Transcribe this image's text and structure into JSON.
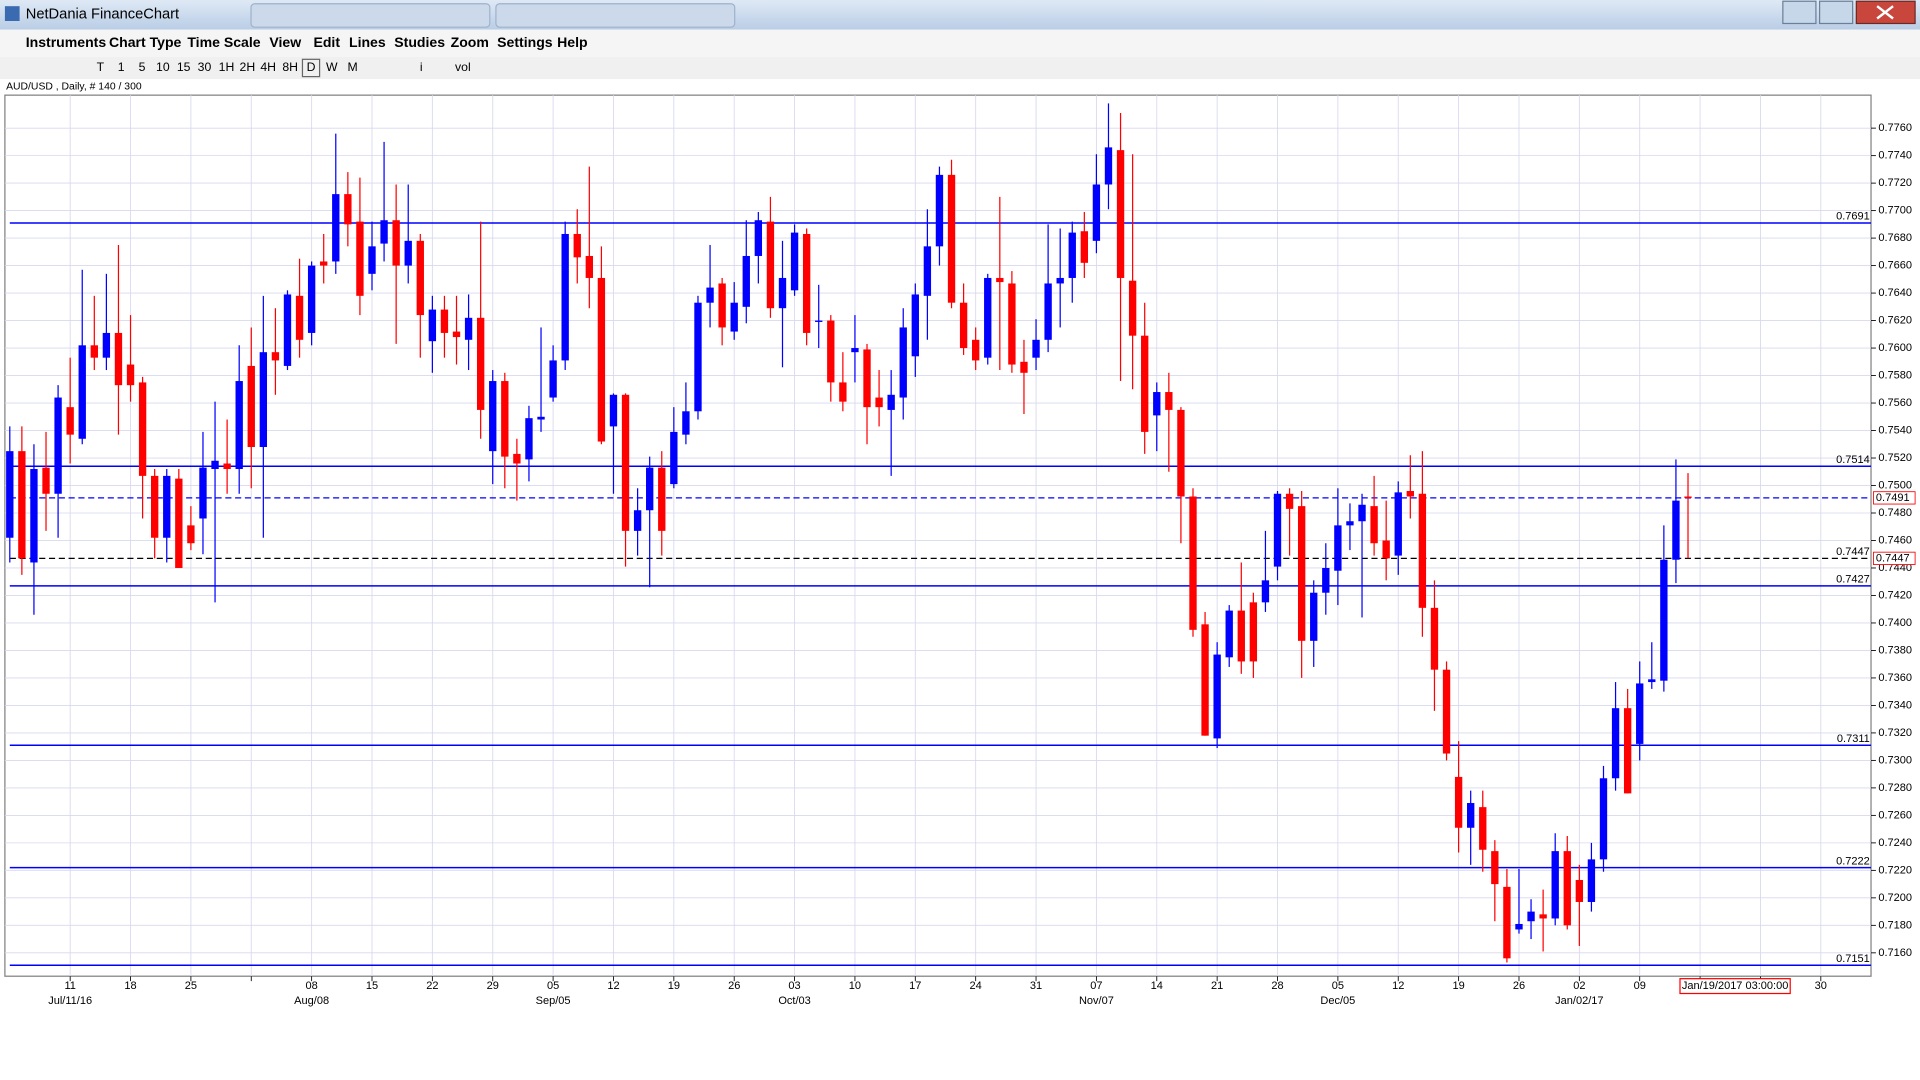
{
  "window": {
    "title": "NetDania FinanceChart",
    "menu": [
      "Instruments",
      "Chart Type",
      "Time Scale",
      "View",
      "Edit",
      "Lines",
      "Studies",
      "Zoom",
      "Settings",
      "Help"
    ],
    "toolbar": [
      "T",
      "1",
      "5",
      "10",
      "15",
      "30",
      "1H",
      "2H",
      "4H",
      "8H",
      "D",
      "W",
      "M",
      "i",
      "vol"
    ]
  },
  "chart_data": {
    "type": "candlestick",
    "symbol_info": "AUD/USD , Daily, # 140 / 300",
    "up_color": "#0000ff",
    "down_color": "#ff0000",
    "grid": true,
    "open": [
      0.7462,
      0.7525,
      0.7444,
      0.7513,
      0.7494,
      0.7557,
      0.7534,
      0.7602,
      0.7593,
      0.7611,
      0.7588,
      0.7575,
      0.7507,
      0.7462,
      0.7505,
      0.7471,
      0.7476,
      0.7512,
      0.7516,
      0.7512,
      0.7587,
      0.7528,
      0.7597,
      0.7587,
      0.7638,
      0.7611,
      0.7663,
      0.7663,
      0.7712,
      0.7692,
      0.7654,
      0.7676,
      0.7693,
      0.766,
      0.7678,
      0.7605,
      0.7628,
      0.7612,
      0.7606,
      0.7622,
      0.7525,
      0.7576,
      0.7523,
      0.7519,
      0.7548,
      0.7564,
      0.7591,
      0.7683,
      0.7667,
      0.7651,
      0.7543,
      0.7566,
      0.7467,
      0.7482,
      0.7513,
      0.7501,
      0.7537,
      0.7554,
      0.7633,
      0.7647,
      0.7612,
      0.763,
      0.7667,
      0.7692,
      0.7629,
      0.7642,
      0.7683,
      0.7619,
      0.762,
      0.7575,
      0.7597,
      0.7599,
      0.7564,
      0.7555,
      0.7564,
      0.7594,
      0.7638,
      0.7674,
      0.7726,
      0.7633,
      0.7606,
      0.7593,
      0.7651,
      0.7647,
      0.759,
      0.7593,
      0.7606,
      0.7647,
      0.7651,
      0.7685,
      0.7678,
      0.7719,
      0.7744,
      0.7649,
      0.7609,
      0.7551,
      0.7568,
      0.7555,
      0.7492,
      0.7399,
      0.7316,
      0.7375,
      0.7409,
      0.7415,
      0.7415,
      0.7441,
      0.7494,
      0.7485,
      0.7387,
      0.7422,
      0.7438,
      0.7471,
      0.7474,
      0.7485,
      0.746,
      0.7449,
      0.7496,
      0.7494,
      0.7411,
      0.7366,
      0.7288,
      0.7251,
      0.7266,
      0.7234,
      0.7208,
      0.7177,
      0.7183,
      0.7188,
      0.7185,
      0.7234,
      0.7213,
      0.7197,
      0.7228,
      0.7287,
      0.7338,
      0.7312,
      0.7357,
      0.7358,
      0.7446,
      0.7492
    ],
    "high": [
      0.7543,
      0.7543,
      0.753,
      0.7539,
      0.7573,
      0.7593,
      0.7657,
      0.7638,
      0.7654,
      0.7675,
      0.7624,
      0.7579,
      0.7512,
      0.7512,
      0.7512,
      0.7485,
      0.7539,
      0.7561,
      0.7548,
      0.7602,
      0.7615,
      0.7638,
      0.7629,
      0.7642,
      0.7665,
      0.7663,
      0.7683,
      0.7756,
      0.7728,
      0.7724,
      0.7692,
      0.775,
      0.7719,
      0.7719,
      0.7683,
      0.7638,
      0.7638,
      0.7638,
      0.7639,
      0.7692,
      0.7584,
      0.7582,
      0.7534,
      0.7558,
      0.7615,
      0.7602,
      0.7692,
      0.7701,
      0.7732,
      0.7674,
      0.7567,
      0.7567,
      0.7498,
      0.7521,
      0.7525,
      0.7557,
      0.7575,
      0.7638,
      0.7675,
      0.7651,
      0.7648,
      0.7693,
      0.7699,
      0.771,
      0.7678,
      0.769,
      0.7687,
      0.7646,
      0.7624,
      0.7597,
      0.7624,
      0.7603,
      0.7584,
      0.7584,
      0.7629,
      0.7647,
      0.7701,
      0.7732,
      0.7737,
      0.7647,
      0.7615,
      0.7654,
      0.771,
      0.7656,
      0.7606,
      0.7621,
      0.769,
      0.7687,
      0.7692,
      0.7699,
      0.7741,
      0.7778,
      0.7771,
      0.7741,
      0.7633,
      0.7575,
      0.7582,
      0.7557,
      0.7498,
      0.7408,
      0.7386,
      0.7413,
      0.7444,
      0.7422,
      0.7467,
      0.7496,
      0.7498,
      0.7496,
      0.7431,
      0.7458,
      0.7498,
      0.7487,
      0.7494,
      0.7507,
      0.7489,
      0.7503,
      0.7522,
      0.7525,
      0.7431,
      0.7372,
      0.7314,
      0.7278,
      0.7278,
      0.7242,
      0.7221,
      0.7221,
      0.7199,
      0.7206,
      0.7247,
      0.7245,
      0.7224,
      0.724,
      0.7296,
      0.7357,
      0.7352,
      0.7372,
      0.7386,
      0.7471,
      0.7519,
      0.7509
    ],
    "low": [
      0.7444,
      0.7435,
      0.7406,
      0.7467,
      0.7462,
      0.7516,
      0.753,
      0.7584,
      0.7584,
      0.7537,
      0.7561,
      0.7476,
      0.7447,
      0.7444,
      0.744,
      0.7453,
      0.745,
      0.7415,
      0.7494,
      0.7494,
      0.7498,
      0.7462,
      0.7566,
      0.7584,
      0.7593,
      0.7602,
      0.7647,
      0.7654,
      0.7674,
      0.7624,
      0.7642,
      0.7663,
      0.7603,
      0.7647,
      0.7593,
      0.7582,
      0.7593,
      0.7588,
      0.7584,
      0.7534,
      0.7501,
      0.7498,
      0.7489,
      0.7503,
      0.7539,
      0.7561,
      0.7584,
      0.7647,
      0.7629,
      0.753,
      0.7494,
      0.7441,
      0.7449,
      0.7426,
      0.7449,
      0.7498,
      0.753,
      0.7548,
      0.7615,
      0.7602,
      0.7606,
      0.7618,
      0.7647,
      0.7622,
      0.7586,
      0.7638,
      0.7602,
      0.76,
      0.7561,
      0.7554,
      0.7575,
      0.753,
      0.7543,
      0.7507,
      0.7548,
      0.7579,
      0.7606,
      0.766,
      0.7629,
      0.7595,
      0.7584,
      0.7588,
      0.7584,
      0.7582,
      0.7552,
      0.7584,
      0.7597,
      0.7615,
      0.7633,
      0.7651,
      0.7669,
      0.7701,
      0.7576,
      0.757,
      0.7523,
      0.7525,
      0.751,
      0.7458,
      0.739,
      0.7318,
      0.7309,
      0.7368,
      0.7363,
      0.736,
      0.7408,
      0.7431,
      0.7449,
      0.736,
      0.7368,
      0.7406,
      0.7413,
      0.7453,
      0.7404,
      0.7449,
      0.7431,
      0.7435,
      0.7476,
      0.739,
      0.7336,
      0.73,
      0.7233,
      0.7224,
      0.7219,
      0.7183,
      0.7153,
      0.7174,
      0.717,
      0.7161,
      0.718,
      0.7177,
      0.7165,
      0.719,
      0.7219,
      0.7278,
      0.7276,
      0.73,
      0.7352,
      0.735,
      0.7429,
      0.7447
    ],
    "close": [
      0.7525,
      0.7447,
      0.7512,
      0.7494,
      0.7564,
      0.7537,
      0.7602,
      0.7593,
      0.7611,
      0.7573,
      0.7573,
      0.7507,
      0.7462,
      0.7507,
      0.744,
      0.7458,
      0.7513,
      0.7518,
      0.7512,
      0.7576,
      0.7528,
      0.7597,
      0.7591,
      0.7639,
      0.7606,
      0.766,
      0.766,
      0.7712,
      0.769,
      0.7638,
      0.7674,
      0.7693,
      0.766,
      0.7678,
      0.7624,
      0.7628,
      0.7611,
      0.7608,
      0.7622,
      0.7555,
      0.7576,
      0.7521,
      0.7516,
      0.7549,
      0.755,
      0.7591,
      0.7683,
      0.7666,
      0.7651,
      0.7532,
      0.7566,
      0.7467,
      0.7482,
      0.7513,
      0.7467,
      0.7539,
      0.7554,
      0.7633,
      0.7644,
      0.7615,
      0.7633,
      0.7667,
      0.7693,
      0.7629,
      0.7651,
      0.7684,
      0.7611,
      0.762,
      0.7575,
      0.7561,
      0.76,
      0.7557,
      0.7557,
      0.7566,
      0.7615,
      0.7639,
      0.7674,
      0.7726,
      0.7633,
      0.76,
      0.7591,
      0.7651,
      0.7648,
      0.7588,
      0.7582,
      0.7606,
      0.7647,
      0.7651,
      0.7684,
      0.7662,
      0.7719,
      0.7746,
      0.7651,
      0.7609,
      0.7539,
      0.7568,
      0.7555,
      0.7492,
      0.7395,
      0.7318,
      0.7377,
      0.7409,
      0.7372,
      0.7372,
      0.7431,
      0.7494,
      0.7483,
      0.7387,
      0.7422,
      0.744,
      0.7471,
      0.7474,
      0.7486,
      0.7458,
      0.7447,
      0.7495,
      0.7492,
      0.7411,
      0.7366,
      0.7305,
      0.7251,
      0.7269,
      0.7235,
      0.721,
      0.7156,
      0.7181,
      0.719,
      0.7185,
      0.7234,
      0.718,
      0.7197,
      0.7228,
      0.7287,
      0.7338,
      0.7276,
      0.7356,
      0.7359,
      0.7446,
      0.7489,
      0.7491
    ],
    "xticks": [
      "11",
      "18",
      "25",
      null,
      "08",
      "15",
      "22",
      "29",
      "05",
      "12",
      "19",
      "26",
      "03",
      "10",
      "17",
      "24",
      "31",
      "07",
      "14",
      "21",
      "28",
      "05",
      "12",
      "19",
      "26",
      "02",
      "09",
      null,
      null,
      "30"
    ],
    "xticks_major": [
      "Jul/11/16",
      null,
      null,
      null,
      "Aug/08",
      null,
      null,
      null,
      "Sep/05",
      null,
      null,
      null,
      "Oct/03",
      null,
      null,
      null,
      null,
      "Nov/07",
      null,
      null,
      null,
      "Dec/05",
      null,
      null,
      null,
      "Jan/02/17",
      null,
      null,
      null,
      null
    ],
    "ylim": [
      0.7143,
      0.7784
    ],
    "yticks": [
      {
        "value": 0.716,
        "label": "0.7160"
      },
      {
        "value": 0.718,
        "label": "0.7180"
      },
      {
        "value": 0.72,
        "label": "0.7200"
      },
      {
        "value": 0.722,
        "label": "0.7220"
      },
      {
        "value": 0.724,
        "label": "0.7240"
      },
      {
        "value": 0.726,
        "label": "0.7260"
      },
      {
        "value": 0.728,
        "label": "0.7280"
      },
      {
        "value": 0.73,
        "label": "0.7300"
      },
      {
        "value": 0.732,
        "label": "0.7320"
      },
      {
        "value": 0.734,
        "label": "0.7340"
      },
      {
        "value": 0.736,
        "label": "0.7360"
      },
      {
        "value": 0.738,
        "label": "0.7380"
      },
      {
        "value": 0.74,
        "label": "0.7400"
      },
      {
        "value": 0.742,
        "label": "0.7420"
      },
      {
        "value": 0.744,
        "label": "0.7440"
      },
      {
        "value": 0.746,
        "label": "0.7460"
      },
      {
        "value": 0.748,
        "label": "0.7480"
      },
      {
        "value": 0.75,
        "label": "0.7500"
      },
      {
        "value": 0.752,
        "label": "0.7520"
      },
      {
        "value": 0.754,
        "label": "0.7540"
      },
      {
        "value": 0.756,
        "label": "0.7560"
      },
      {
        "value": 0.758,
        "label": "0.7580"
      },
      {
        "value": 0.76,
        "label": "0.7600"
      },
      {
        "value": 0.762,
        "label": "0.7620"
      },
      {
        "value": 0.764,
        "label": "0.7640"
      },
      {
        "value": 0.766,
        "label": "0.7660"
      },
      {
        "value": 0.768,
        "label": "0.7680"
      },
      {
        "value": 0.77,
        "label": "0.7700"
      },
      {
        "value": 0.772,
        "label": "0.7720"
      },
      {
        "value": 0.774,
        "label": "0.7740"
      },
      {
        "value": 0.776,
        "label": "0.7760"
      }
    ],
    "hlines": [
      0.7691,
      0.7514,
      0.7427,
      0.7311,
      0.7222,
      0.7151
    ],
    "hline_color": "#0000ff",
    "last_price": 0.7491,
    "crosshair": {
      "value": 0.7447,
      "time_label": "Jan/19/2017 03:00:00"
    }
  }
}
